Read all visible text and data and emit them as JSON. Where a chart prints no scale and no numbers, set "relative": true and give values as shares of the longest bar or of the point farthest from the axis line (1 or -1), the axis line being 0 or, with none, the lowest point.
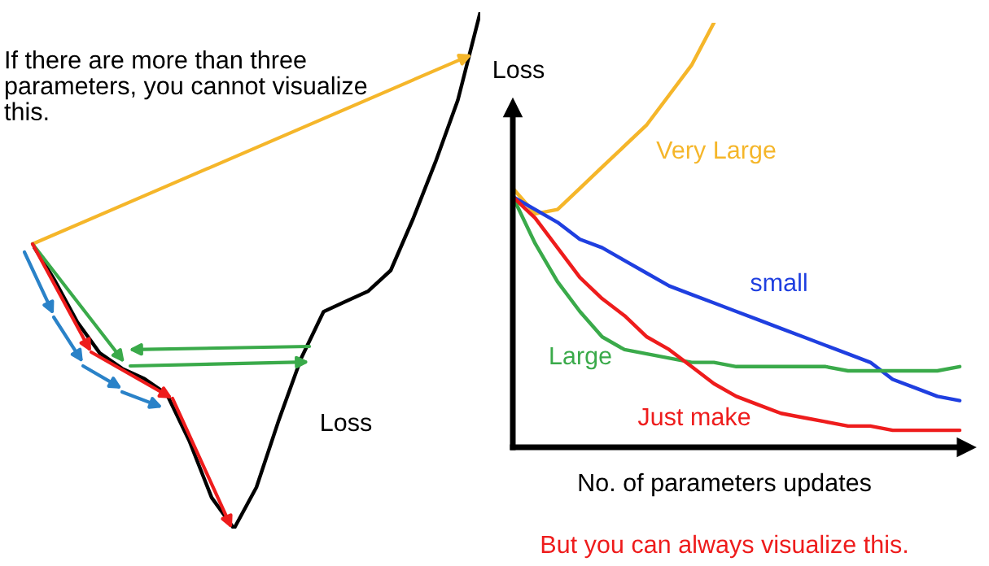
{
  "chart_data": [
    {
      "type": "line",
      "relative": true,
      "categories": [
        null,
        null,
        null,
        null,
        null,
        null,
        null,
        null,
        null,
        null,
        null,
        null,
        null,
        null,
        null,
        null,
        null,
        null,
        null,
        null,
        null
      ],
      "annotations": [
        "If there are more than three parameters, you cannot visualize this."
      ],
      "series": [
        {
          "name": "Loss",
          "color": "#000000",
          "values": [
            0.55,
            0.48,
            0.4,
            0.34,
            0.31,
            0.29,
            0.26,
            0.17,
            0.06,
            0.0,
            0.08,
            0.21,
            0.33,
            0.42,
            0.44,
            0.46,
            0.5,
            0.6,
            0.71,
            0.83,
            1.0
          ]
        }
      ]
    },
    {
      "type": "line",
      "relative": true,
      "categories": [
        null,
        null,
        null,
        null,
        null,
        null,
        null,
        null,
        null,
        null,
        null,
        null,
        null,
        null,
        null,
        null,
        null,
        null,
        null,
        null,
        null
      ],
      "xlabel": "No. of parameters updates",
      "ylabel": "Loss",
      "annotations": [
        "But you can always visualize this."
      ],
      "series": [
        {
          "name": "Very Large",
          "color": "#f5b62a",
          "values": [
            0.61,
            0.55,
            0.56,
            0.61,
            0.66,
            0.71,
            0.76,
            0.83,
            0.9,
            1.0,
            null,
            null,
            null,
            null,
            null,
            null,
            null,
            null,
            null,
            null,
            null
          ]
        },
        {
          "name": "small",
          "color": "#1f3fe0",
          "values": [
            0.59,
            0.56,
            0.53,
            0.49,
            0.47,
            0.44,
            0.41,
            0.38,
            0.36,
            0.34,
            0.32,
            0.3,
            0.28,
            0.26,
            0.24,
            0.22,
            0.2,
            0.16,
            0.14,
            0.12,
            0.11
          ]
        },
        {
          "name": "Large",
          "color": "#3aaa4a",
          "values": [
            0.59,
            0.48,
            0.39,
            0.32,
            0.26,
            0.23,
            0.22,
            0.21,
            0.2,
            0.2,
            0.19,
            0.19,
            0.19,
            0.19,
            0.19,
            0.18,
            0.18,
            0.18,
            0.18,
            0.18,
            0.19
          ]
        },
        {
          "name": "Just make",
          "color": "#ee1c1c",
          "values": [
            0.59,
            0.54,
            0.47,
            0.4,
            0.35,
            0.31,
            0.26,
            0.23,
            0.19,
            0.15,
            0.12,
            0.1,
            0.08,
            0.07,
            0.06,
            0.05,
            0.05,
            0.04,
            0.04,
            0.04,
            0.04
          ]
        }
      ]
    }
  ]
}
